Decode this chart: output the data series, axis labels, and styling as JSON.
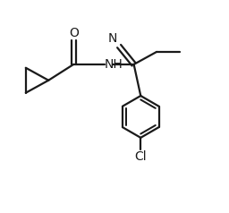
{
  "background_color": "#ffffff",
  "line_color": "#1a1a1a",
  "line_width": 1.6,
  "font_size_atoms": 10,
  "figsize": [
    2.56,
    2.38
  ],
  "dpi": 100,
  "xlim": [
    0,
    10
  ],
  "ylim": [
    0,
    9.3
  ]
}
